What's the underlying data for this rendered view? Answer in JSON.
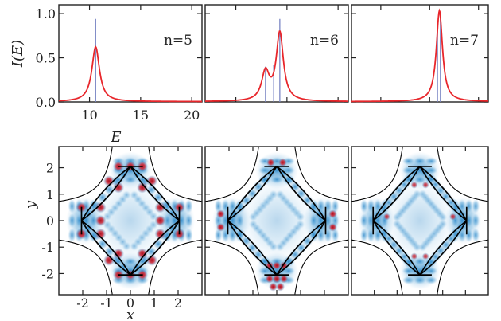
{
  "chart_data": [
    {
      "type": "line",
      "xlabel": "E",
      "ylabel": "I(E)",
      "xlim": [
        7,
        21
      ],
      "ylim": [
        0,
        1.1
      ],
      "xticks": [
        10,
        15,
        20
      ],
      "yticks": [
        "0.0",
        "0.5",
        "1.0"
      ],
      "panels": [
        {
          "label": "n=5",
          "show_x_tick_labels": true,
          "show_y_tick_labels": true,
          "line_color": "#e8262b",
          "stick_color": "#7a86c4",
          "peaks": [
            {
              "center": 10.6,
              "height": 0.62,
              "width": 0.45
            }
          ],
          "sticks": [
            {
              "x": 10.6,
              "h": 0.94
            }
          ]
        },
        {
          "label": "n=6",
          "show_x_tick_labels": false,
          "show_y_tick_labels": false,
          "line_color": "#e8262b",
          "stick_color": "#7a86c4",
          "peaks": [
            {
              "center": 12.9,
              "height": 0.32,
              "width": 0.45
            },
            {
              "center": 14.3,
              "height": 0.77,
              "width": 0.42
            }
          ],
          "sticks": [
            {
              "x": 12.9,
              "h": 0.4
            },
            {
              "x": 13.7,
              "h": 0.42
            },
            {
              "x": 14.3,
              "h": 0.94
            }
          ]
        },
        {
          "label": "n=7",
          "show_x_tick_labels": false,
          "show_y_tick_labels": false,
          "line_color": "#e8262b",
          "stick_color": "#7a86c4",
          "peaks": [
            {
              "center": 16.0,
              "height": 1.03,
              "width": 0.38
            }
          ],
          "sticks": [
            {
              "x": 15.8,
              "h": 0.88
            },
            {
              "x": 16.1,
              "h": 0.97
            }
          ]
        }
      ]
    },
    {
      "type": "heatmap",
      "xlabel": "x",
      "ylabel": "y",
      "xlim": [
        -3,
        3
      ],
      "ylim": [
        -2.8,
        2.8
      ],
      "xticks": [
        -2,
        -1,
        0,
        1,
        2
      ],
      "yticks": [
        -2,
        -1,
        0,
        1,
        2
      ],
      "colormap": [
        "#ffffff",
        "#2a86c8",
        "#b01020"
      ],
      "panels": [
        {
          "n": 5,
          "show_x_tick_labels": true,
          "show_y_tick_labels": true,
          "spots_on_top": true
        },
        {
          "n": 6,
          "show_x_tick_labels": false,
          "show_y_tick_labels": false,
          "spots_on_top": true
        },
        {
          "n": 7,
          "show_x_tick_labels": false,
          "show_y_tick_labels": false,
          "spots_on_top": false
        }
      ]
    }
  ]
}
